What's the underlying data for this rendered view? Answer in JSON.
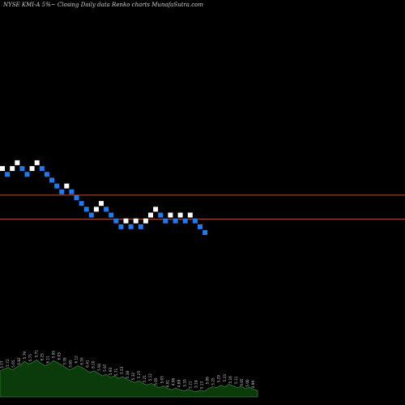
{
  "chart_data": {
    "type": "renko",
    "title": "NYSE KMI-A 5%~  Closing Daily data  Renko  charts MunafaSutra.com",
    "brick_colors": {
      "up": "#ffffff",
      "down": "#1e7bf0"
    },
    "reference_lines": [
      {
        "value": 25.45,
        "color": "#b8552f"
      },
      {
        "value": 25.16,
        "color": "#b8552f"
      }
    ],
    "bricks": [
      {
        "close": 25.77,
        "dir": "up"
      },
      {
        "close": 25.7,
        "dir": "down"
      },
      {
        "close": 25.77,
        "dir": "up"
      },
      {
        "close": 25.84,
        "dir": "up"
      },
      {
        "close": 25.77,
        "dir": "down"
      },
      {
        "close": 25.7,
        "dir": "down"
      },
      {
        "close": 25.77,
        "dir": "up"
      },
      {
        "close": 25.84,
        "dir": "up"
      },
      {
        "close": 25.77,
        "dir": "down"
      },
      {
        "close": 25.7,
        "dir": "down"
      },
      {
        "close": 25.63,
        "dir": "down"
      },
      {
        "close": 25.56,
        "dir": "down"
      },
      {
        "close": 25.49,
        "dir": "down"
      },
      {
        "close": 25.56,
        "dir": "up"
      },
      {
        "close": 25.49,
        "dir": "down"
      },
      {
        "close": 25.42,
        "dir": "down"
      },
      {
        "close": 25.35,
        "dir": "down"
      },
      {
        "close": 25.28,
        "dir": "down"
      },
      {
        "close": 25.21,
        "dir": "down"
      },
      {
        "close": 25.28,
        "dir": "up"
      },
      {
        "close": 25.35,
        "dir": "up"
      },
      {
        "close": 25.28,
        "dir": "down"
      },
      {
        "close": 25.21,
        "dir": "down"
      },
      {
        "close": 25.14,
        "dir": "down"
      },
      {
        "close": 25.07,
        "dir": "down"
      },
      {
        "close": 25.14,
        "dir": "up"
      },
      {
        "close": 25.07,
        "dir": "down"
      },
      {
        "close": 25.14,
        "dir": "up"
      },
      {
        "close": 25.07,
        "dir": "down"
      },
      {
        "close": 25.14,
        "dir": "up"
      },
      {
        "close": 25.21,
        "dir": "up"
      },
      {
        "close": 25.28,
        "dir": "up"
      },
      {
        "close": 25.21,
        "dir": "down"
      },
      {
        "close": 25.14,
        "dir": "down"
      },
      {
        "close": 25.21,
        "dir": "up"
      },
      {
        "close": 25.14,
        "dir": "down"
      },
      {
        "close": 25.21,
        "dir": "up"
      },
      {
        "close": 25.14,
        "dir": "down"
      },
      {
        "close": 25.21,
        "dir": "up"
      },
      {
        "close": 25.14,
        "dir": "down"
      },
      {
        "close": 25.07,
        "dir": "down"
      },
      {
        "close": 25.0,
        "dir": "down"
      }
    ],
    "volume_profile": [
      0.62,
      0.66,
      0.7,
      0.64,
      0.7,
      0.76,
      0.84,
      0.78,
      0.82,
      0.88,
      0.8,
      0.74,
      0.78,
      0.86,
      0.82,
      0.76,
      0.7,
      0.64,
      0.68,
      0.74,
      0.7,
      0.64,
      0.58,
      0.62,
      0.56,
      0.5,
      0.54,
      0.46,
      0.5,
      0.44,
      0.48,
      0.42,
      0.38,
      0.34,
      0.38,
      0.32,
      0.28,
      0.32,
      0.26,
      0.22,
      0.26,
      0.2,
      0.17,
      0.21,
      0.17,
      0.14,
      0.18,
      0.14,
      0.12,
      0.16,
      0.13,
      0.2,
      0.24,
      0.22,
      0.28,
      0.24,
      0.3,
      0.26,
      0.22,
      0.25,
      0.2,
      0.23,
      0.18,
      0.15
    ],
    "volume_labels": [
      "5.77",
      "5.72",
      "5.65",
      "5.82",
      "5.79",
      "5.75",
      "5.71",
      "6.25",
      "6.11",
      "5.95",
      "6.03",
      "5.78",
      "5.85",
      "6.12",
      "6.16",
      "6.41",
      "6.10",
      "5.92",
      "5.97",
      "5.93",
      "5.71",
      "5.53",
      "5.38",
      "5.32",
      "5.25",
      "5.21",
      "5.12",
      "5.05",
      "5.03",
      "4.91",
      "4.98",
      "4.89",
      "5.10",
      "5.21",
      "5.18",
      "5.13",
      "5.09",
      "5.25",
      "5.29",
      "5.23",
      "5.16",
      "5.11",
      "5.05",
      "5.00",
      "4.99"
    ]
  }
}
